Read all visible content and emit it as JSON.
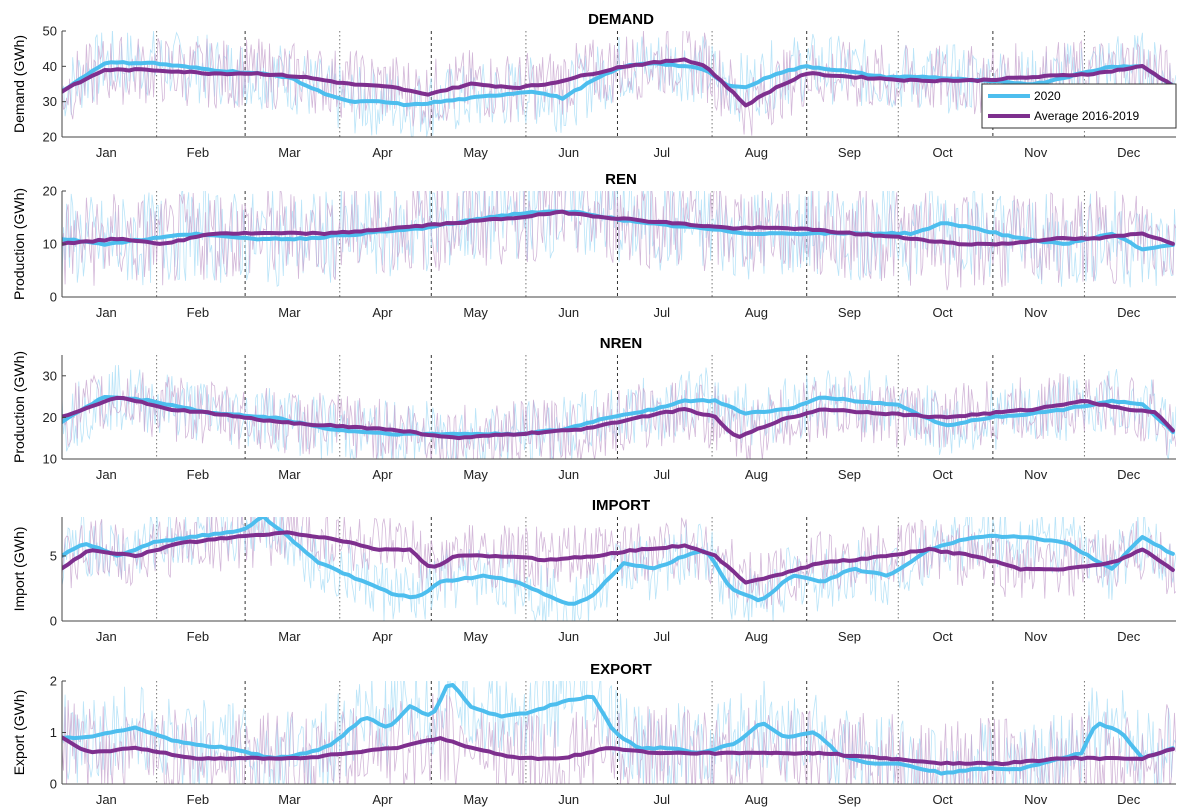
{
  "figure": {
    "months": [
      "Jan",
      "Feb",
      "Mar",
      "Apr",
      "May",
      "Jun",
      "Jul",
      "Aug",
      "Sep",
      "Oct",
      "Nov",
      "Dec"
    ],
    "legend": {
      "items": [
        "2020",
        "Average 2016-2019"
      ],
      "placement": "top-right of first panel"
    },
    "colors": {
      "series_2020": "#4DBEEE",
      "series_avg": "#7E2F8E"
    }
  },
  "chart_data": [
    {
      "type": "line",
      "title": "DEMAND",
      "xlabel": "",
      "ylabel": "Demand (GWh)",
      "ylim": [
        20,
        50
      ],
      "yticks": [
        20,
        30,
        40,
        50
      ],
      "xticklabels": [
        "Jan",
        "Feb",
        "Mar",
        "Apr",
        "May",
        "Jun",
        "Jul",
        "Aug",
        "Sep",
        "Oct",
        "Nov",
        "Dec"
      ],
      "noise": 10,
      "series": [
        {
          "name": "2020",
          "x": [
            1,
            15,
            30,
            50,
            65,
            75,
            85,
            95,
            105,
            115,
            125,
            135,
            145,
            155,
            165,
            175,
            185,
            195,
            205,
            212,
            218,
            225,
            235,
            245,
            255,
            270,
            285,
            300,
            320,
            335,
            345,
            355,
            366
          ],
          "values": [
            33,
            41,
            41,
            39,
            38,
            37,
            33,
            30,
            30,
            29,
            30,
            31,
            32,
            33,
            31,
            36,
            40,
            41,
            40,
            39,
            35,
            34,
            38,
            40,
            39,
            37,
            37,
            36,
            35,
            38,
            40,
            40,
            34
          ]
        },
        {
          "name": "Average 2016-2019",
          "x": [
            1,
            15,
            30,
            50,
            65,
            80,
            95,
            110,
            120,
            135,
            150,
            160,
            170,
            185,
            195,
            205,
            212,
            218,
            225,
            235,
            245,
            260,
            280,
            300,
            320,
            340,
            355,
            366
          ],
          "values": [
            33,
            39,
            39,
            38,
            38,
            37,
            35,
            34,
            32,
            35,
            34,
            35,
            37,
            40,
            41,
            42,
            40,
            35,
            29,
            34,
            38,
            37,
            36,
            36,
            37,
            38,
            40,
            34
          ]
        }
      ]
    },
    {
      "type": "line",
      "title": "REN",
      "xlabel": "",
      "ylabel": "Production (GWh)",
      "ylim": [
        0,
        20
      ],
      "yticks": [
        0,
        10,
        20
      ],
      "xticklabels": [
        "Jan",
        "Feb",
        "Mar",
        "Apr",
        "May",
        "Jun",
        "Jul",
        "Aug",
        "Sep",
        "Oct",
        "Nov",
        "Dec"
      ],
      "noise": 9,
      "series": [
        {
          "name": "2020",
          "x": [
            1,
            15,
            30,
            45,
            60,
            80,
            100,
            120,
            140,
            155,
            170,
            190,
            210,
            225,
            245,
            265,
            280,
            290,
            300,
            315,
            330,
            345,
            355,
            366
          ],
          "values": [
            11,
            10,
            11,
            12,
            11,
            11,
            12,
            13,
            15,
            16,
            16,
            14,
            13,
            12,
            12,
            12,
            12,
            14,
            13,
            11,
            10,
            12,
            9,
            10
          ]
        },
        {
          "name": "Average 2016-2019",
          "x": [
            1,
            20,
            35,
            50,
            70,
            90,
            110,
            130,
            150,
            165,
            180,
            200,
            220,
            240,
            260,
            280,
            295,
            310,
            325,
            340,
            355,
            366
          ],
          "values": [
            10,
            11,
            10,
            12,
            12,
            12,
            13,
            14,
            15,
            16,
            15,
            14,
            13,
            13,
            12,
            11,
            10,
            10,
            11,
            11,
            12,
            10
          ]
        }
      ]
    },
    {
      "type": "line",
      "title": "NREN",
      "xlabel": "",
      "ylabel": "Production (GWh)",
      "ylim": [
        10,
        35
      ],
      "yticks": [
        10,
        20,
        30
      ],
      "xticklabels": [
        "Jan",
        "Feb",
        "Mar",
        "Apr",
        "May",
        "Jun",
        "Jul",
        "Aug",
        "Sep",
        "Oct",
        "Nov",
        "Dec"
      ],
      "noise": 8,
      "series": [
        {
          "name": "2020",
          "x": [
            1,
            15,
            30,
            50,
            70,
            90,
            110,
            130,
            150,
            165,
            180,
            195,
            205,
            215,
            225,
            240,
            250,
            260,
            275,
            290,
            305,
            320,
            330,
            345,
            355,
            366
          ],
          "values": [
            19,
            25,
            24,
            21,
            20,
            17,
            16,
            16,
            16,
            17,
            20,
            22,
            24,
            24,
            21,
            22,
            25,
            24,
            23,
            18,
            20,
            21,
            22,
            24,
            23,
            16
          ]
        },
        {
          "name": "Average 2016-2019",
          "x": [
            1,
            20,
            35,
            50,
            70,
            90,
            110,
            130,
            150,
            170,
            190,
            205,
            215,
            222,
            235,
            250,
            270,
            290,
            305,
            320,
            335,
            350,
            360,
            366
          ],
          "values": [
            20,
            25,
            22,
            21,
            19,
            18,
            17,
            15,
            16,
            17,
            20,
            22,
            20,
            15,
            19,
            22,
            21,
            20,
            21,
            22,
            24,
            22,
            21,
            16
          ]
        }
      ]
    },
    {
      "type": "line",
      "title": "IMPORT",
      "xlabel": "",
      "ylabel": "Import (GWh)",
      "ylim": [
        0,
        8
      ],
      "yticks": [
        0,
        5
      ],
      "xticklabels": [
        "Jan",
        "Feb",
        "Mar",
        "Apr",
        "May",
        "Jun",
        "Jul",
        "Aug",
        "Sep",
        "Oct",
        "Nov",
        "Dec"
      ],
      "noise": 2.5,
      "series": [
        {
          "name": "2020",
          "x": [
            1,
            8,
            20,
            30,
            45,
            60,
            67,
            75,
            85,
            100,
            110,
            118,
            125,
            140,
            150,
            160,
            168,
            175,
            185,
            195,
            205,
            212,
            220,
            230,
            240,
            250,
            260,
            272,
            285,
            300,
            315,
            330,
            345,
            355,
            366
          ],
          "values": [
            5,
            6,
            5,
            6,
            6.5,
            7,
            8,
            6.5,
            4.5,
            3,
            2,
            1.8,
            3,
            3.5,
            3,
            2,
            1.2,
            2,
            4.5,
            4,
            5,
            5.5,
            2.5,
            1.5,
            3.5,
            3,
            4,
            3.5,
            5.5,
            6.5,
            6.5,
            6,
            4,
            6.5,
            5
          ]
        },
        {
          "name": "Average 2016-2019",
          "x": [
            1,
            10,
            25,
            40,
            60,
            75,
            90,
            105,
            115,
            122,
            130,
            145,
            160,
            175,
            190,
            205,
            215,
            225,
            235,
            250,
            265,
            285,
            300,
            315,
            330,
            345,
            355,
            366
          ],
          "values": [
            4,
            5.5,
            5,
            6,
            6.5,
            6.8,
            6.3,
            5.5,
            5.5,
            4,
            5,
            5,
            4.7,
            5,
            5.5,
            5.8,
            5,
            3,
            3.5,
            4.5,
            4.8,
            5.5,
            5,
            4,
            4,
            4.5,
            5.5,
            3.8
          ]
        }
      ]
    },
    {
      "type": "line",
      "title": "EXPORT",
      "xlabel": "",
      "ylabel": "Export (GWh)",
      "ylim": [
        0,
        2
      ],
      "yticks": [
        0,
        1,
        2
      ],
      "xticklabels": [
        "Jan",
        "Feb",
        "Mar",
        "Apr",
        "May",
        "Jun",
        "Jul",
        "Aug",
        "Sep",
        "Oct",
        "Nov",
        "Dec"
      ],
      "noise": 0.9,
      "series": [
        {
          "name": "2020",
          "x": [
            1,
            10,
            25,
            40,
            55,
            70,
            82,
            90,
            100,
            108,
            115,
            122,
            128,
            135,
            145,
            155,
            165,
            175,
            182,
            190,
            200,
            210,
            222,
            230,
            238,
            248,
            255,
            265,
            275,
            290,
            300,
            315,
            328,
            335,
            340,
            348,
            355,
            366
          ],
          "values": [
            0.9,
            0.9,
            1.1,
            0.8,
            0.7,
            0.5,
            0.6,
            0.8,
            1.3,
            1.1,
            1.5,
            1.3,
            2.0,
            1.5,
            1.3,
            1.4,
            1.6,
            1.7,
            1.0,
            0.7,
            0.7,
            0.6,
            0.8,
            1.2,
            0.9,
            1.0,
            0.6,
            0.4,
            0.4,
            0.2,
            0.3,
            0.3,
            0.5,
            0.6,
            1.2,
            1.0,
            0.5,
            0.7
          ]
        },
        {
          "name": "Average 2016-2019",
          "x": [
            1,
            10,
            25,
            45,
            65,
            80,
            95,
            110,
            125,
            135,
            150,
            165,
            180,
            195,
            210,
            230,
            250,
            270,
            290,
            310,
            330,
            345,
            355,
            366
          ],
          "values": [
            0.9,
            0.6,
            0.7,
            0.5,
            0.5,
            0.5,
            0.6,
            0.7,
            0.9,
            0.7,
            0.5,
            0.5,
            0.7,
            0.6,
            0.6,
            0.6,
            0.6,
            0.5,
            0.4,
            0.4,
            0.5,
            0.5,
            0.5,
            0.7
          ]
        }
      ]
    }
  ]
}
